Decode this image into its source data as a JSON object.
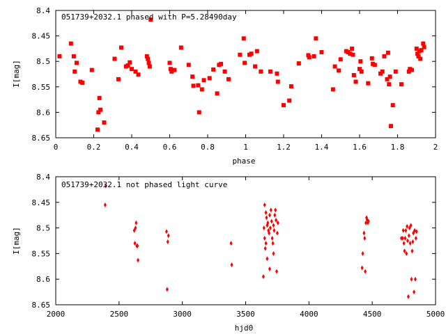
{
  "colors": {
    "points": "#ff0000",
    "axes": "#000000",
    "background": "#ffffff"
  },
  "chart_data": [
    {
      "type": "scatter",
      "title": "051739+2032.1 phased with P=5.28490day",
      "xlabel": "phase",
      "ylabel": "I[mag]",
      "xlim": [
        0,
        2
      ],
      "ylim": [
        8.4,
        8.65
      ],
      "y_inverted": true,
      "grid": false,
      "marker": "square",
      "xticks": [
        "0",
        "0.2",
        "0.4",
        "0.6",
        "0.8",
        "1",
        "1.2",
        "1.4",
        "1.6",
        "1.8",
        "2"
      ],
      "xtick_values": [
        0,
        0.2,
        0.4,
        0.6,
        0.8,
        1.0,
        1.2,
        1.4,
        1.6,
        1.8,
        2.0
      ],
      "yticks": [
        "8.4",
        "8.45",
        "8.5",
        "8.55",
        "8.6",
        "8.65"
      ],
      "ytick_values": [
        8.4,
        8.45,
        8.5,
        8.55,
        8.6,
        8.65
      ],
      "points": [
        [
          0.02,
          8.49
        ],
        [
          0.08,
          8.465
        ],
        [
          0.095,
          8.49
        ],
        [
          0.1,
          8.52
        ],
        [
          0.11,
          8.503
        ],
        [
          0.13,
          8.54
        ],
        [
          0.14,
          8.542
        ],
        [
          0.19,
          8.517
        ],
        [
          0.22,
          8.634
        ],
        [
          0.225,
          8.6
        ],
        [
          0.23,
          8.572
        ],
        [
          0.235,
          8.595
        ],
        [
          0.255,
          8.62
        ],
        [
          0.31,
          8.495
        ],
        [
          0.33,
          8.535
        ],
        [
          0.345,
          8.473
        ],
        [
          0.37,
          8.51
        ],
        [
          0.38,
          8.508
        ],
        [
          0.39,
          8.502
        ],
        [
          0.4,
          8.515
        ],
        [
          0.42,
          8.52
        ],
        [
          0.435,
          8.526
        ],
        [
          0.48,
          8.49
        ],
        [
          0.485,
          8.495
        ],
        [
          0.49,
          8.503
        ],
        [
          0.495,
          8.51
        ],
        [
          0.5,
          8.418
        ],
        [
          0.6,
          8.503
        ],
        [
          0.605,
          8.515
        ],
        [
          0.61,
          8.52
        ],
        [
          0.625,
          8.517
        ],
        [
          0.66,
          8.473
        ],
        [
          0.7,
          8.507
        ],
        [
          0.72,
          8.53
        ],
        [
          0.725,
          8.548
        ],
        [
          0.75,
          8.547
        ],
        [
          0.755,
          8.6
        ],
        [
          0.77,
          8.555
        ],
        [
          0.78,
          8.537
        ],
        [
          0.81,
          8.533
        ],
        [
          0.83,
          8.516
        ],
        [
          0.85,
          8.563
        ],
        [
          0.86,
          8.507
        ],
        [
          0.87,
          8.505
        ],
        [
          0.89,
          8.52
        ],
        [
          0.91,
          8.535
        ],
        [
          0.97,
          8.487
        ],
        [
          0.99,
          8.455
        ],
        [
          0.995,
          8.503
        ],
        [
          1.02,
          8.487
        ],
        [
          1.03,
          8.485
        ],
        [
          1.05,
          8.51
        ],
        [
          1.06,
          8.48
        ],
        [
          1.08,
          8.52
        ],
        [
          1.13,
          8.52
        ],
        [
          1.165,
          8.524
        ],
        [
          1.17,
          8.54
        ],
        [
          1.2,
          8.586
        ],
        [
          1.23,
          8.577
        ],
        [
          1.24,
          8.549
        ],
        [
          1.28,
          8.504
        ],
        [
          1.33,
          8.488
        ],
        [
          1.335,
          8.492
        ],
        [
          1.36,
          8.49
        ],
        [
          1.37,
          8.455
        ],
        [
          1.4,
          8.482
        ],
        [
          1.46,
          8.555
        ],
        [
          1.47,
          8.51
        ],
        [
          1.49,
          8.518
        ],
        [
          1.5,
          8.496
        ],
        [
          1.53,
          8.48
        ],
        [
          1.54,
          8.482
        ],
        [
          1.55,
          8.485
        ],
        [
          1.56,
          8.475
        ],
        [
          1.565,
          8.487
        ],
        [
          1.57,
          8.527
        ],
        [
          1.58,
          8.54
        ],
        [
          1.6,
          8.515
        ],
        [
          1.605,
          8.5
        ],
        [
          1.61,
          8.52
        ],
        [
          1.645,
          8.543
        ],
        [
          1.665,
          8.494
        ],
        [
          1.67,
          8.505
        ],
        [
          1.68,
          8.507
        ],
        [
          1.71,
          8.524
        ],
        [
          1.72,
          8.52
        ],
        [
          1.73,
          8.49
        ],
        [
          1.745,
          8.535
        ],
        [
          1.75,
          8.483
        ],
        [
          1.755,
          8.545
        ],
        [
          1.76,
          8.53
        ],
        [
          1.765,
          8.627
        ],
        [
          1.775,
          8.586
        ],
        [
          1.79,
          8.52
        ],
        [
          1.82,
          8.545
        ],
        [
          1.86,
          8.52
        ],
        [
          1.865,
          8.515
        ],
        [
          1.875,
          8.517
        ],
        [
          1.9,
          8.475
        ],
        [
          1.905,
          8.485
        ],
        [
          1.91,
          8.49
        ],
        [
          1.915,
          8.48
        ],
        [
          1.92,
          8.495
        ],
        [
          1.925,
          8.478
        ],
        [
          1.935,
          8.465
        ],
        [
          1.94,
          8.472
        ]
      ]
    },
    {
      "type": "scatter",
      "title": "051739+2032.1 not phased light curve",
      "xlabel": "hjd0",
      "ylabel": "I[mag]",
      "xlim": [
        2000,
        5000
      ],
      "ylim": [
        8.4,
        8.65
      ],
      "y_inverted": true,
      "grid": false,
      "marker": "diamond",
      "xticks": [
        "2000",
        "2500",
        "3000",
        "3500",
        "4000",
        "4500",
        "5000"
      ],
      "xtick_values": [
        2000,
        2500,
        3000,
        3500,
        4000,
        4500,
        5000
      ],
      "yticks": [
        "8.4",
        "8.45",
        "8.5",
        "8.55",
        "8.6",
        "8.65"
      ],
      "ytick_values": [
        8.4,
        8.45,
        8.5,
        8.55,
        8.6,
        8.65
      ],
      "points": [
        [
          2390,
          8.455
        ],
        [
          2395,
          8.418
        ],
        [
          2620,
          8.505
        ],
        [
          2625,
          8.53
        ],
        [
          2630,
          8.5
        ],
        [
          2635,
          8.49
        ],
        [
          2640,
          8.535
        ],
        [
          2645,
          8.535
        ],
        [
          2650,
          8.563
        ],
        [
          2875,
          8.507
        ],
        [
          2880,
          8.62
        ],
        [
          2885,
          8.527
        ],
        [
          2890,
          8.515
        ],
        [
          3385,
          8.53
        ],
        [
          3390,
          8.572
        ],
        [
          3640,
          8.595
        ],
        [
          3645,
          8.5
        ],
        [
          3650,
          8.52
        ],
        [
          3650,
          8.455
        ],
        [
          3655,
          8.54
        ],
        [
          3660,
          8.47
        ],
        [
          3660,
          8.53
        ],
        [
          3665,
          8.48
        ],
        [
          3670,
          8.495
        ],
        [
          3670,
          8.56
        ],
        [
          3675,
          8.49
        ],
        [
          3680,
          8.505
        ],
        [
          3685,
          8.51
        ],
        [
          3690,
          8.58
        ],
        [
          3690,
          8.475
        ],
        [
          3695,
          8.5
        ],
        [
          3700,
          8.465
        ],
        [
          3705,
          8.487
        ],
        [
          3710,
          8.52
        ],
        [
          3715,
          8.53
        ],
        [
          3720,
          8.495
        ],
        [
          3720,
          8.55
        ],
        [
          3725,
          8.505
        ],
        [
          3730,
          8.475
        ],
        [
          3735,
          8.465
        ],
        [
          3740,
          8.485
        ],
        [
          3745,
          8.585
        ],
        [
          3750,
          8.51
        ],
        [
          3755,
          8.49
        ],
        [
          4420,
          8.578
        ],
        [
          4425,
          8.55
        ],
        [
          4435,
          8.51
        ],
        [
          4440,
          8.52
        ],
        [
          4445,
          8.585
        ],
        [
          4450,
          8.49
        ],
        [
          4455,
          8.48
        ],
        [
          4460,
          8.484
        ],
        [
          4465,
          8.49
        ],
        [
          4470,
          8.487
        ],
        [
          4730,
          8.52
        ],
        [
          4740,
          8.52
        ],
        [
          4745,
          8.505
        ],
        [
          4750,
          8.53
        ],
        [
          4755,
          8.545
        ],
        [
          4760,
          8.52
        ],
        [
          4765,
          8.505
        ],
        [
          4770,
          8.55
        ],
        [
          4775,
          8.497
        ],
        [
          4780,
          8.525
        ],
        [
          4785,
          8.634
        ],
        [
          4790,
          8.515
        ],
        [
          4795,
          8.5
        ],
        [
          4800,
          8.53
        ],
        [
          4805,
          8.495
        ],
        [
          4810,
          8.6
        ],
        [
          4815,
          8.545
        ],
        [
          4820,
          8.527
        ],
        [
          4825,
          8.51
        ],
        [
          4830,
          8.625
        ],
        [
          4835,
          8.505
        ],
        [
          4840,
          8.6
        ],
        [
          4845,
          8.52
        ],
        [
          4850,
          8.507
        ]
      ]
    }
  ]
}
